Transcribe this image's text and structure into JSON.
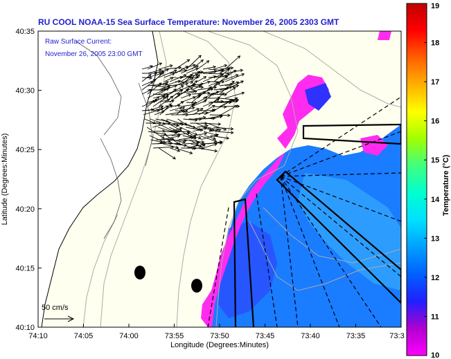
{
  "title": "RU COOL  NOAA-15  Sea Surface Temperature:  November 26, 2005 2303 GMT",
  "annotation": {
    "line1": "Raw Surface Current:",
    "line2": "November 26, 2005 23:00 GMT"
  },
  "scale": {
    "label": "50 cm/s"
  },
  "axes": {
    "xlabel": "Longitude (Degrees:Minutes)",
    "ylabel": "Latitude (Degrees:Minutes)",
    "xticks": [
      "74:10",
      "74:05",
      "74:00",
      "73:55",
      "73:50",
      "73:45",
      "73:40",
      "73:35",
      "73:3"
    ],
    "yticks": [
      "40:35",
      "40:30",
      "40:25",
      "40:20",
      "40:15",
      "40:10"
    ]
  },
  "colorbar": {
    "label": "Temperature (°C)",
    "ticks": [
      "19",
      "18",
      "17",
      "16",
      "15",
      "14",
      "13",
      "12",
      "11",
      "10"
    ],
    "min": 10,
    "max": 19,
    "colors": [
      "#ff00ff",
      "#b000d0",
      "#2020ff",
      "#0060ff",
      "#00a0ff",
      "#00e0ff",
      "#00ffd0",
      "#40ff80",
      "#a0ff00",
      "#ffff00",
      "#ffb000",
      "#ff6000",
      "#ff0000",
      "#c00000"
    ]
  }
}
